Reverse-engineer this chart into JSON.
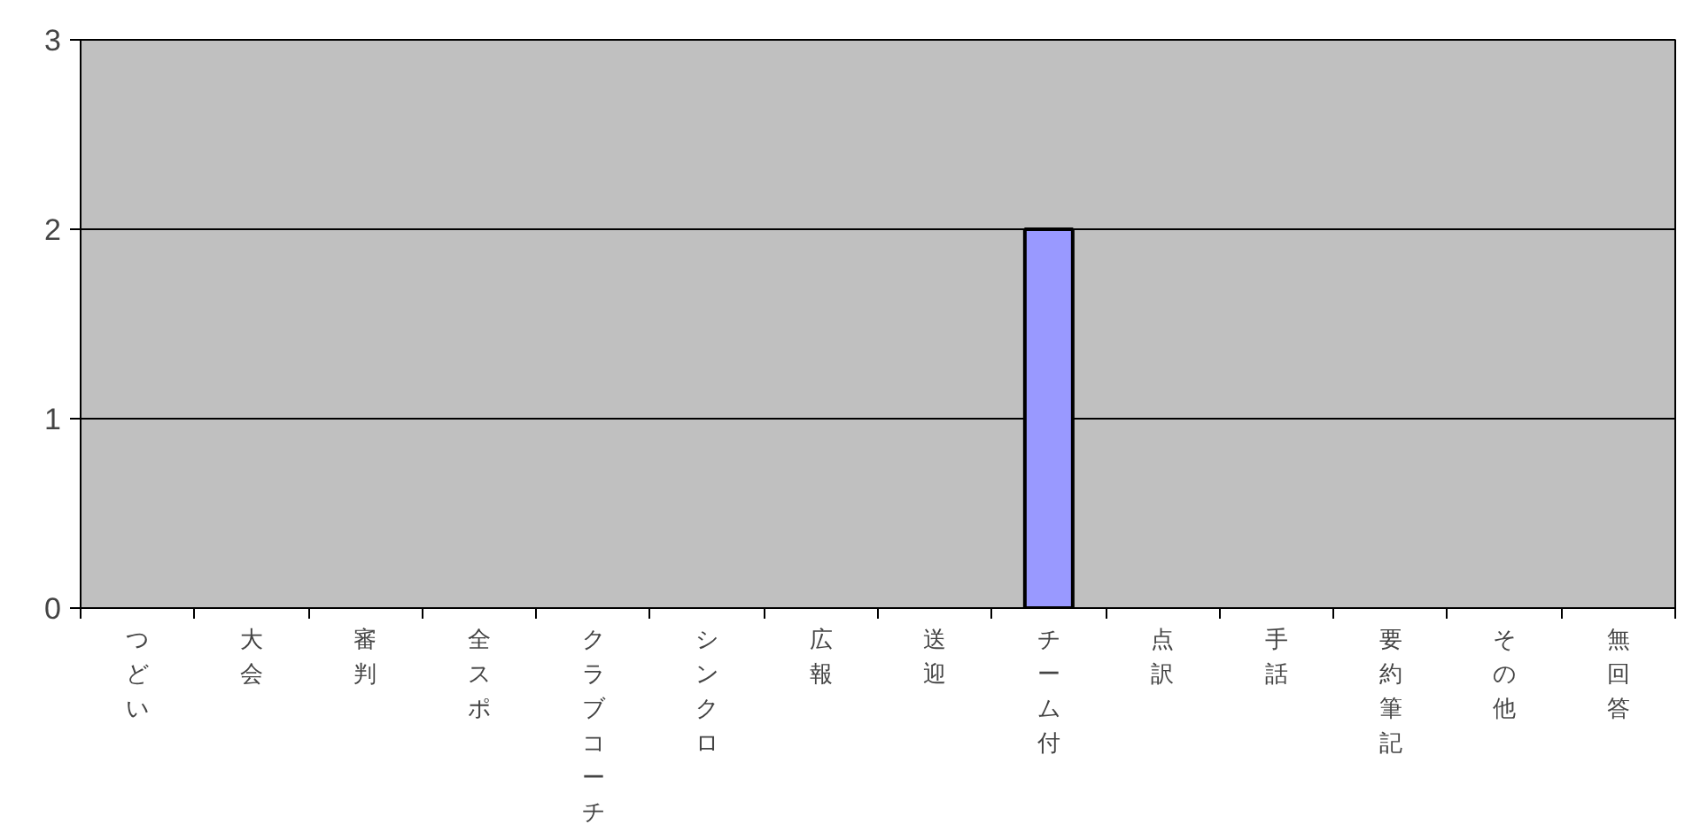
{
  "chart_data": {
    "type": "bar",
    "categories": [
      "つどい",
      "大会",
      "審判",
      "全スポ",
      "クラブコーチ",
      "シンクロ",
      "広報",
      "送迎",
      "チーム付",
      "点訳",
      "手話",
      "要約筆記",
      "その他",
      "無回答"
    ],
    "values": [
      0,
      0,
      0,
      0,
      0,
      0,
      0,
      0,
      2,
      0,
      0,
      0,
      0,
      0
    ],
    "color": "#9999ff",
    "ylim": [
      0,
      3
    ],
    "yticks": [
      0,
      1,
      2,
      3
    ],
    "grid": "y"
  }
}
